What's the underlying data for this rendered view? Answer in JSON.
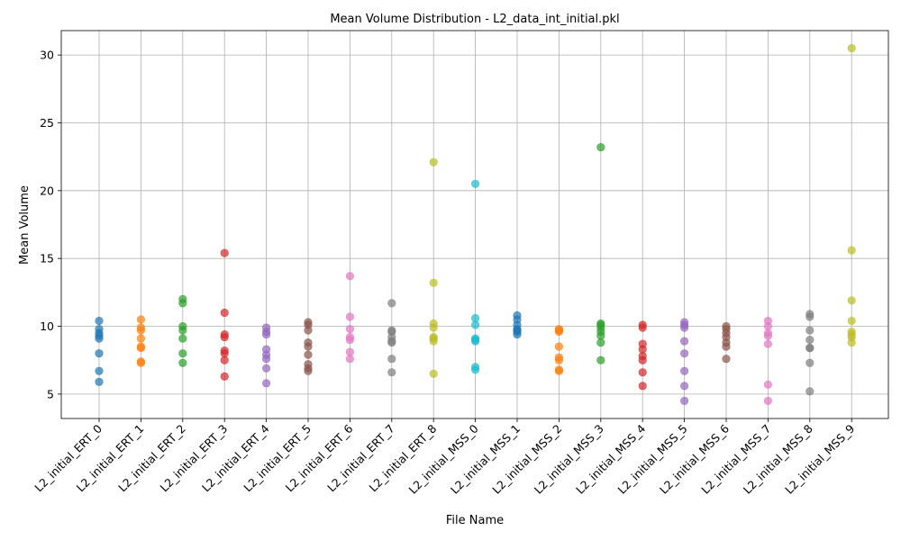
{
  "chart_data": {
    "type": "scatter",
    "title": "Mean Volume Distribution - L2_data_int_initial.pkl",
    "xlabel": "File Name",
    "ylabel": "Mean Volume",
    "ylim": [
      3.2,
      31.8
    ],
    "yticks": [
      5,
      10,
      15,
      20,
      25,
      30
    ],
    "grid": true,
    "categories": [
      "L2_initial_ERT_0",
      "L2_initial_ERT_1",
      "L2_initial_ERT_2",
      "L2_initial_ERT_3",
      "L2_initial_ERT_4",
      "L2_initial_ERT_5",
      "L2_initial_ERT_6",
      "L2_initial_ERT_7",
      "L2_initial_ERT_8",
      "L2_initial_MSS_0",
      "L2_initial_MSS_1",
      "L2_initial_MSS_2",
      "L2_initial_MSS_3",
      "L2_initial_MSS_4",
      "L2_initial_MSS_5",
      "L2_initial_MSS_6",
      "L2_initial_MSS_7",
      "L2_initial_MSS_8",
      "L2_initial_MSS_9"
    ],
    "colors": [
      "#1f77b4",
      "#ff7f0e",
      "#2ca02c",
      "#d62728",
      "#9467bd",
      "#8c564b",
      "#e377c2",
      "#7f7f7f",
      "#bcbd22",
      "#17becf"
    ],
    "series": [
      {
        "values": [
          10.4,
          9.8,
          9.5,
          9.3,
          9.1,
          8.0,
          6.7,
          5.9
        ]
      },
      {
        "values": [
          10.5,
          9.9,
          9.7,
          9.1,
          8.5,
          8.4,
          7.4,
          7.3
        ]
      },
      {
        "values": [
          12.0,
          11.7,
          10.0,
          9.7,
          9.1,
          8.0,
          7.3
        ]
      },
      {
        "values": [
          15.4,
          11.0,
          9.4,
          9.2,
          8.2,
          8.0,
          7.5,
          6.3
        ]
      },
      {
        "values": [
          9.9,
          9.6,
          9.4,
          8.3,
          7.9,
          7.6,
          6.9,
          5.8
        ]
      },
      {
        "values": [
          10.3,
          10.1,
          9.7,
          8.8,
          8.5,
          7.9,
          7.2,
          6.9,
          6.7
        ]
      },
      {
        "values": [
          13.7,
          10.7,
          9.8,
          9.2,
          9.0,
          8.1,
          7.6
        ]
      },
      {
        "values": [
          11.7,
          9.7,
          9.6,
          9.2,
          8.9,
          8.8,
          7.6,
          6.6
        ]
      },
      {
        "values": [
          22.1,
          13.2,
          10.2,
          9.9,
          9.2,
          9.1,
          8.9,
          6.5
        ]
      },
      {
        "values": [
          20.5,
          10.6,
          10.1,
          9.1,
          9.0,
          8.9,
          7.0,
          6.8
        ]
      },
      {
        "values": [
          10.8,
          10.5,
          10.1,
          9.8,
          9.7,
          9.6,
          9.4
        ]
      },
      {
        "values": [
          9.8,
          9.7,
          9.6,
          8.5,
          7.7,
          7.5,
          6.8,
          6.7
        ]
      },
      {
        "values": [
          23.2,
          10.2,
          10.1,
          9.9,
          9.6,
          9.3,
          8.8,
          7.5
        ]
      },
      {
        "values": [
          10.1,
          9.9,
          8.7,
          8.3,
          7.8,
          7.5,
          6.6,
          5.6
        ]
      },
      {
        "values": [
          10.3,
          10.1,
          9.9,
          8.9,
          8.0,
          6.7,
          5.6,
          4.5
        ]
      },
      {
        "values": [
          10.0,
          9.8,
          9.5,
          9.2,
          8.8,
          8.5,
          7.6
        ]
      },
      {
        "values": [
          10.4,
          10.0,
          9.5,
          9.3,
          8.7,
          5.7,
          4.5
        ]
      },
      {
        "values": [
          10.9,
          10.7,
          9.7,
          9.0,
          8.4,
          8.4,
          7.3,
          5.2
        ]
      },
      {
        "values": [
          30.5,
          15.6,
          11.9,
          10.4,
          9.6,
          9.4,
          9.2,
          8.8
        ]
      }
    ]
  }
}
